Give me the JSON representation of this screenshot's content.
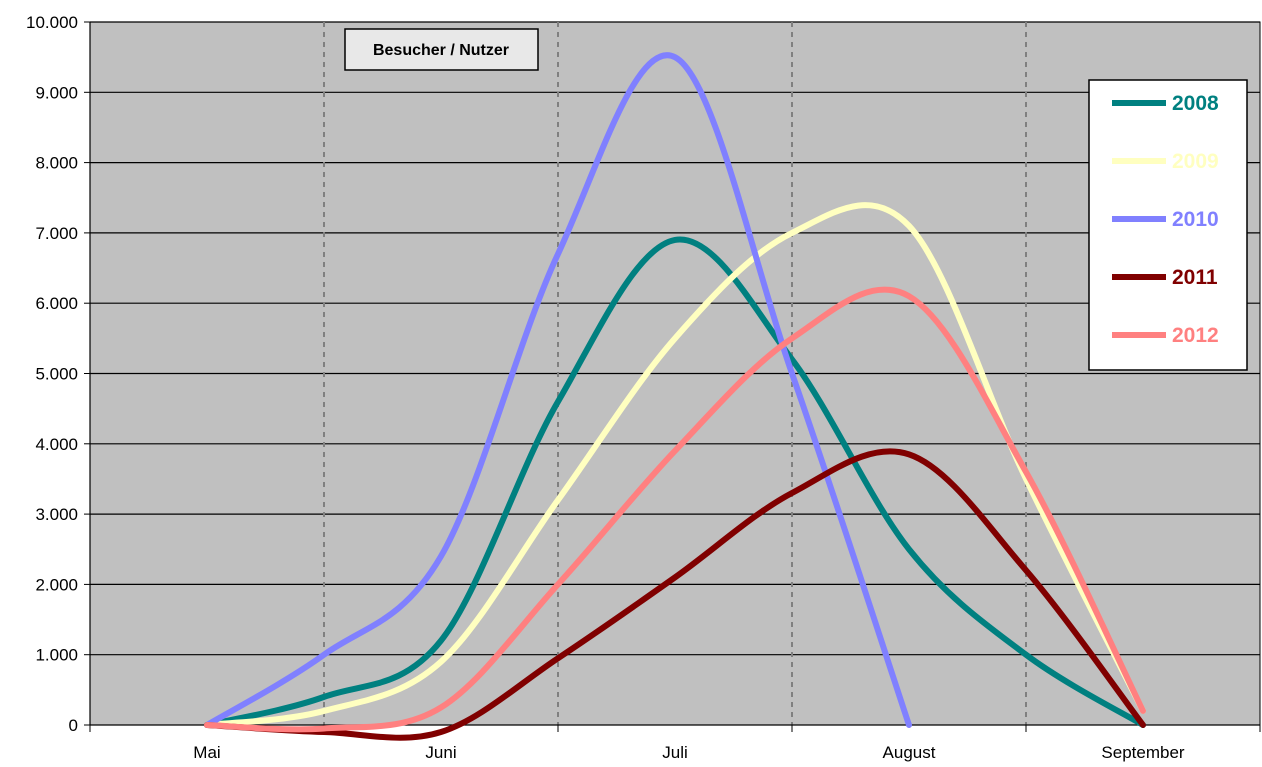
{
  "chart_data": {
    "type": "line",
    "title": "Besucher / Nutzer",
    "xlabel": "",
    "ylabel": "",
    "x_ticks": [
      "Mai",
      "Juni",
      "Juli",
      "August",
      "September"
    ],
    "y_ticks": [
      "0",
      "1.000",
      "2.000",
      "3.000",
      "4.000",
      "5.000",
      "6.000",
      "7.000",
      "8.000",
      "9.000",
      "10.000"
    ],
    "ylim": [
      0,
      10000
    ],
    "grid": "horizontal solid, vertical dashed",
    "background_color": "#c0c0c0",
    "legend_position": "top-right",
    "series": [
      {
        "name": "2008",
        "color": "#008080",
        "points": [
          [
            "Mai",
            0
          ],
          [
            "Mai-Mitte",
            400
          ],
          [
            "Juni",
            1200
          ],
          [
            "Juni-Mitte",
            4600
          ],
          [
            "Juli",
            6900
          ],
          [
            "Juli-Mitte",
            5200
          ],
          [
            "August",
            2500
          ],
          [
            "August-Mitte",
            1000
          ],
          [
            "September",
            0
          ]
        ]
      },
      {
        "name": "2009",
        "color": "#ffffc0",
        "points": [
          [
            "Mai",
            0
          ],
          [
            "Mai-Mitte",
            200
          ],
          [
            "Juni",
            900
          ],
          [
            "Juni-Mitte",
            3200
          ],
          [
            "Juli",
            5500
          ],
          [
            "Juli-Mitte",
            7000
          ],
          [
            "August",
            7100
          ],
          [
            "August-Mitte",
            3500
          ],
          [
            "September",
            200
          ]
        ]
      },
      {
        "name": "2010",
        "color": "#8080ff",
        "points": [
          [
            "Mai",
            0
          ],
          [
            "Mai-Mitte",
            1000
          ],
          [
            "Juni",
            2400
          ],
          [
            "Juni-Mitte",
            6700
          ],
          [
            "Juli",
            9500
          ],
          [
            "Juli-Mitte",
            5000
          ],
          [
            "August",
            0
          ]
        ]
      },
      {
        "name": "2011",
        "color": "#800000",
        "points": [
          [
            "Mai",
            0
          ],
          [
            "Mai-Mitte",
            -100
          ],
          [
            "Juni",
            -100
          ],
          [
            "Juni-Mitte",
            950
          ],
          [
            "Juli",
            2100
          ],
          [
            "Juli-Mitte",
            3300
          ],
          [
            "August",
            3850
          ],
          [
            "August-Mitte",
            2200
          ],
          [
            "September",
            0
          ]
        ]
      },
      {
        "name": "2012",
        "color": "#ff8080",
        "points": [
          [
            "Mai",
            0
          ],
          [
            "Mai-Mitte",
            -50
          ],
          [
            "Juni",
            250
          ],
          [
            "Juni-Mitte",
            2000
          ],
          [
            "Juli",
            3900
          ],
          [
            "Juli-Mitte",
            5500
          ],
          [
            "August",
            6100
          ],
          [
            "August-Mitte",
            3600
          ],
          [
            "September",
            200
          ]
        ]
      }
    ]
  }
}
